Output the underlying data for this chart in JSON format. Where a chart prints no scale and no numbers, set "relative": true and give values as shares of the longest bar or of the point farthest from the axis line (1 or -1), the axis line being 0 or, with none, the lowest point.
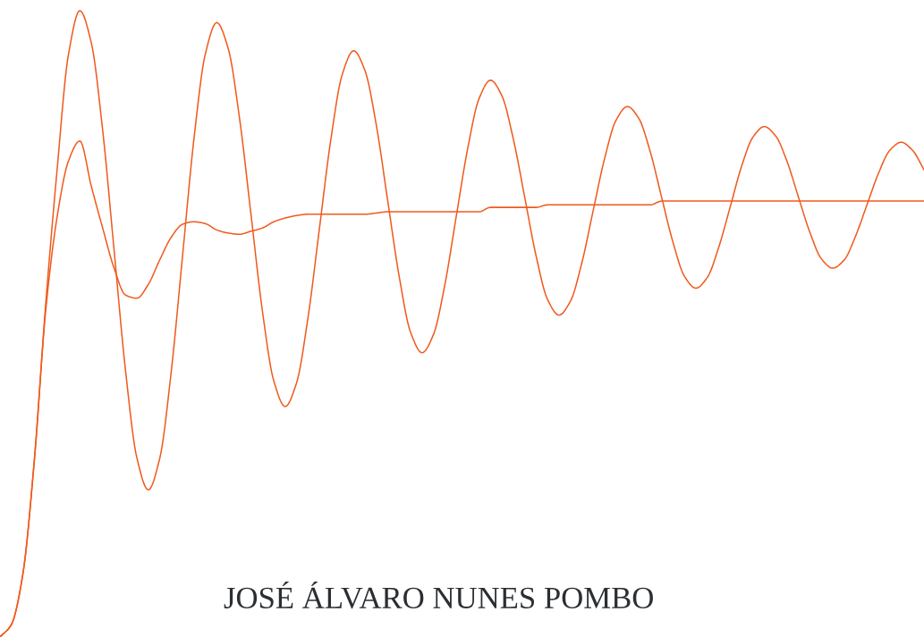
{
  "chart_data": {
    "type": "line",
    "relative": true,
    "grid": false,
    "legend": false,
    "categories": [
      null,
      null,
      null,
      null,
      null,
      null,
      null,
      null,
      null,
      null,
      null,
      null,
      null,
      null,
      null,
      null,
      null,
      null,
      null,
      null,
      null,
      null,
      null,
      null,
      null,
      null,
      null,
      null,
      null,
      null,
      null,
      null,
      null,
      null,
      null,
      null,
      null,
      null,
      null,
      null,
      null,
      null,
      null,
      null,
      null,
      null,
      null,
      null,
      null,
      null,
      null,
      null,
      null,
      null,
      null,
      null,
      null,
      null,
      null,
      null,
      null,
      null,
      null,
      null,
      null,
      null,
      null,
      null,
      null,
      null,
      null,
      null,
      null,
      null,
      null,
      null,
      null,
      null,
      null,
      null,
      null,
      null
    ],
    "series": [
      {
        "color": "#f05a1e",
        "values": [
          0,
          0.02,
          0.1,
          0.28,
          0.53,
          0.745,
          0.93,
          1.0,
          0.949,
          0.809,
          0.618,
          0.426,
          0.286,
          0.235,
          0.285,
          0.422,
          0.608,
          0.795,
          0.931,
          0.981,
          0.94,
          0.828,
          0.675,
          0.521,
          0.409,
          0.368,
          0.406,
          0.51,
          0.652,
          0.794,
          0.898,
          0.936,
          0.904,
          0.816,
          0.695,
          0.575,
          0.486,
          0.454,
          0.483,
          0.563,
          0.672,
          0.78,
          0.86,
          0.889,
          0.864,
          0.795,
          0.702,
          0.608,
          0.539,
          0.514,
          0.536,
          0.597,
          0.681,
          0.764,
          0.825,
          0.847,
          0.828,
          0.775,
          0.702,
          0.63,
          0.576,
          0.557,
          0.574,
          0.622,
          0.686,
          0.751,
          0.798,
          0.815,
          0.8,
          0.759,
          0.702,
          0.646,
          0.604,
          0.589,
          0.602,
          0.64,
          0.69,
          0.74,
          0.777,
          0.79,
          0.777,
          0.746
        ]
      },
      {
        "color": "#f05a1e",
        "values": [
          0,
          0.02,
          0.1,
          0.28,
          0.52,
          0.67,
          0.76,
          0.792,
          0.72,
          0.653,
          0.589,
          0.546,
          0.541,
          0.563,
          0.602,
          0.638,
          0.659,
          0.663,
          0.66,
          0.65,
          0.645,
          0.643,
          0.648,
          0.653,
          0.663,
          0.669,
          0.673,
          0.675,
          0.675,
          0.675,
          0.675,
          0.675,
          0.675,
          0.677,
          0.679,
          0.679,
          0.679,
          0.679,
          0.679,
          0.679,
          0.679,
          0.679,
          0.679,
          0.686,
          0.686,
          0.686,
          0.686,
          0.686,
          0.69,
          0.69,
          0.69,
          0.69,
          0.69,
          0.69,
          0.69,
          0.69,
          0.69,
          0.69,
          0.696,
          0.696,
          0.696,
          0.696,
          0.696,
          0.696,
          0.696,
          0.696,
          0.696,
          0.696,
          0.696,
          0.696,
          0.696,
          0.696,
          0.696,
          0.696,
          0.696,
          0.696,
          0.696,
          0.696,
          0.696,
          0.696,
          0.696,
          0.696
        ]
      }
    ],
    "annotations": [
      "JOSÉ ÁLVARO NUNES POMBO"
    ]
  }
}
